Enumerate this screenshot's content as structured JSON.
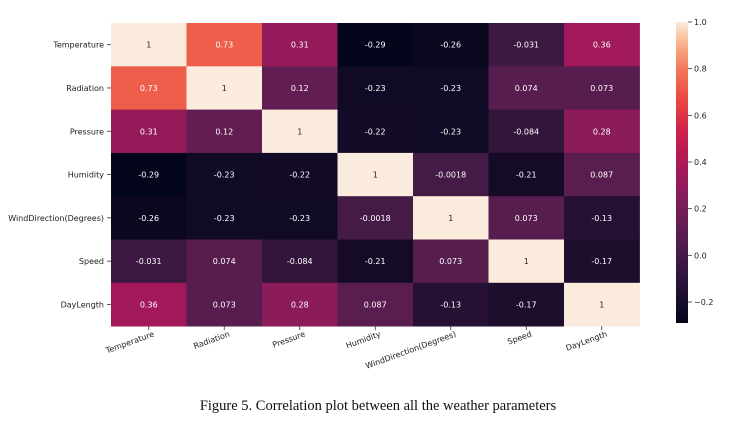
{
  "caption": "Figure 5. Correlation plot between all the weather parameters",
  "chart_data": {
    "type": "heatmap",
    "title": "",
    "xlabel": "",
    "ylabel": "",
    "row_labels": [
      "Temperature",
      "Radiation",
      "Pressure",
      "Humidity",
      "WindDirection(Degrees)",
      "Speed",
      "DayLength"
    ],
    "col_labels": [
      "Temperature",
      "Radiation",
      "Pressure",
      "Humidity",
      "WindDirection(Degrees)",
      "Speed",
      "DayLength"
    ],
    "annotations": [
      [
        "1",
        "0.73",
        "0.31",
        "-0.29",
        "-0.26",
        "-0.031",
        "0.36"
      ],
      [
        "0.73",
        "1",
        "0.12",
        "-0.23",
        "-0.23",
        "0.074",
        "0.073"
      ],
      [
        "0.31",
        "0.12",
        "1",
        "-0.22",
        "-0.23",
        "-0.084",
        "0.28"
      ],
      [
        "-0.29",
        "-0.23",
        "-0.22",
        "1",
        "-0.0018",
        "-0.21",
        "0.087"
      ],
      [
        "-0.26",
        "-0.23",
        "-0.23",
        "-0.0018",
        "1",
        "0.073",
        "-0.13"
      ],
      [
        "-0.031",
        "0.074",
        "-0.084",
        "-0.21",
        "0.073",
        "1",
        "-0.17"
      ],
      [
        "0.36",
        "0.073",
        "0.28",
        "0.087",
        "-0.13",
        "-0.17",
        "1"
      ]
    ],
    "values": [
      [
        1,
        0.73,
        0.31,
        -0.29,
        -0.26,
        -0.031,
        0.36
      ],
      [
        0.73,
        1,
        0.12,
        -0.23,
        -0.23,
        0.074,
        0.073
      ],
      [
        0.31,
        0.12,
        1,
        -0.22,
        -0.23,
        -0.084,
        0.28
      ],
      [
        -0.29,
        -0.23,
        -0.22,
        1,
        -0.0018,
        -0.21,
        0.087
      ],
      [
        -0.26,
        -0.23,
        -0.23,
        -0.0018,
        1,
        0.073,
        -0.13
      ],
      [
        -0.031,
        0.074,
        -0.084,
        -0.21,
        0.073,
        1,
        -0.17
      ],
      [
        0.36,
        0.073,
        0.28,
        0.087,
        -0.13,
        -0.17,
        1
      ]
    ],
    "colorbar": {
      "colormap": "rocket",
      "vmin": -0.29,
      "vmax": 1,
      "ticks": [
        -0.2,
        0.0,
        0.2,
        0.4,
        0.6,
        0.8,
        1.0
      ],
      "tick_labels": [
        "−0.2",
        "0.0",
        "0.2",
        "0.4",
        "0.6",
        "0.8",
        "1.0"
      ]
    },
    "grid": false,
    "legend": "colorbar-right"
  }
}
